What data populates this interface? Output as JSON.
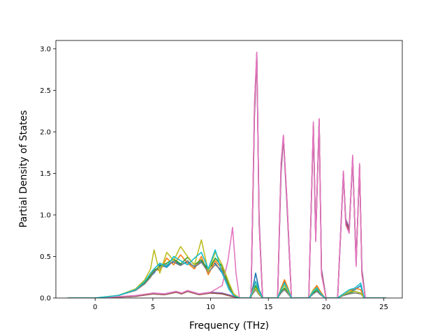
{
  "chart_data": {
    "type": "line",
    "title": "",
    "xlabel": "Frequency (THz)",
    "ylabel": "Partial Density of States",
    "xlim": [
      -3.4,
      26.6
    ],
    "ylim": [
      0.0,
      3.1
    ],
    "xticks": [
      0,
      5,
      10,
      15,
      20,
      25
    ],
    "xtick_labels": [
      "0",
      "5",
      "10",
      "15",
      "20",
      "25"
    ],
    "yticks": [
      0.0,
      0.5,
      1.0,
      1.5,
      2.0,
      2.5,
      3.0
    ],
    "ytick_labels": [
      "0.0",
      "0.5",
      "1.0",
      "1.5",
      "2.0",
      "2.5",
      "3.0"
    ],
    "grid": false,
    "legend": false,
    "colors": [
      "#1f77b4",
      "#ff7f0e",
      "#2ca02c",
      "#d62728",
      "#9467bd",
      "#8c564b",
      "#e377c2",
      "#7f7f7f",
      "#bcbd22",
      "#17becf"
    ],
    "series": [
      {
        "x": [
          -2.4,
          0,
          2,
          3.5,
          4.3,
          4.8,
          5.1,
          5.6,
          6.2,
          6.8,
          7.4,
          8.0,
          8.6,
          9.2,
          9.8,
          10.4,
          11.0,
          11.6,
          12.0,
          12.5,
          13.4,
          13.7,
          13.9,
          14.2,
          14.5,
          15.8,
          16.1,
          16.4,
          16.7,
          17.0,
          18.5,
          18.9,
          19.2,
          19.5,
          19.9,
          21.0,
          21.5,
          22.0,
          22.5,
          23.0,
          23.3,
          25.2
        ],
        "y": [
          0,
          0,
          0.03,
          0.1,
          0.18,
          0.26,
          0.3,
          0.4,
          0.37,
          0.45,
          0.4,
          0.43,
          0.38,
          0.44,
          0.36,
          0.42,
          0.3,
          0.12,
          0.03,
          0,
          0,
          0.15,
          0.3,
          0.1,
          0,
          0,
          0.1,
          0.2,
          0.1,
          0,
          0,
          0.08,
          0.15,
          0.05,
          0,
          0,
          0.05,
          0.08,
          0.1,
          0.15,
          0,
          0
        ]
      },
      {
        "x": [
          -2.4,
          0,
          2,
          3.5,
          4.3,
          4.8,
          5.1,
          5.6,
          6.2,
          6.8,
          7.4,
          8.0,
          8.6,
          9.2,
          9.8,
          10.4,
          11.0,
          11.6,
          12.0,
          12.5,
          13.4,
          13.7,
          13.9,
          14.2,
          14.5,
          15.8,
          16.1,
          16.4,
          16.7,
          17.0,
          18.5,
          18.9,
          19.2,
          19.5,
          19.9,
          21.0,
          21.5,
          22.0,
          22.5,
          23.0,
          23.3,
          25.2
        ],
        "y": [
          0,
          0,
          0.03,
          0.1,
          0.2,
          0.28,
          0.35,
          0.33,
          0.48,
          0.4,
          0.52,
          0.42,
          0.35,
          0.5,
          0.28,
          0.45,
          0.35,
          0.15,
          0.05,
          0,
          0,
          0.12,
          0.2,
          0.08,
          0,
          0,
          0.12,
          0.22,
          0.12,
          0,
          0,
          0.1,
          0.15,
          0.08,
          0,
          0,
          0.05,
          0.08,
          0.12,
          0.1,
          0,
          0
        ]
      },
      {
        "x": [
          -2.4,
          0,
          2,
          3.5,
          4.3,
          4.8,
          5.1,
          5.6,
          6.2,
          6.8,
          7.4,
          8.0,
          8.6,
          9.2,
          9.8,
          10.4,
          11.0,
          11.6,
          12.0,
          12.5,
          13.4,
          13.7,
          13.9,
          14.2,
          14.5,
          15.8,
          16.1,
          16.4,
          16.7,
          17.0,
          18.5,
          18.9,
          19.2,
          19.5,
          19.9,
          21.0,
          21.5,
          22.0,
          22.5,
          23.0,
          23.3,
          25.2
        ],
        "y": [
          0,
          0,
          0.03,
          0.1,
          0.19,
          0.27,
          0.33,
          0.38,
          0.42,
          0.47,
          0.41,
          0.49,
          0.4,
          0.46,
          0.33,
          0.48,
          0.38,
          0.14,
          0.04,
          0,
          0,
          0.08,
          0.15,
          0.06,
          0,
          0,
          0.08,
          0.12,
          0.06,
          0,
          0,
          0.06,
          0.1,
          0.05,
          0,
          0,
          0.03,
          0.06,
          0.08,
          0.06,
          0,
          0
        ]
      },
      {
        "x": [
          -2.4,
          0,
          3.5,
          5.0,
          6.0,
          7.0,
          7.5,
          8.0,
          9.0,
          10.0,
          11.0,
          11.8,
          12.5,
          13.5,
          13.8,
          14.0,
          14.2,
          14.5,
          15.8,
          16.1,
          16.3,
          16.6,
          17.0,
          18.5,
          18.9,
          19.1,
          19.4,
          19.6,
          20.0,
          21.0,
          21.5,
          21.7,
          22.0,
          22.3,
          22.6,
          22.9,
          23.1,
          23.4,
          25.2
        ],
        "y": [
          0,
          0,
          0.02,
          0.05,
          0.04,
          0.07,
          0.05,
          0.08,
          0.04,
          0.06,
          0.05,
          0.02,
          0,
          0,
          2.3,
          2.95,
          0.9,
          0,
          0,
          1.6,
          1.95,
          1.2,
          0,
          0,
          2.1,
          0.7,
          2.15,
          0.3,
          0,
          0,
          1.5,
          0.9,
          0.8,
          1.7,
          0.4,
          1.6,
          0.3,
          0,
          0
        ]
      },
      {
        "x": [
          -2.4,
          0,
          3.5,
          5.0,
          6.0,
          7.0,
          7.5,
          8.0,
          9.0,
          10.0,
          11.0,
          11.8,
          12.5,
          13.5,
          13.8,
          14.0,
          14.2,
          14.5,
          15.8,
          16.1,
          16.3,
          16.6,
          17.0,
          18.5,
          18.9,
          19.1,
          19.4,
          19.6,
          20.0,
          21.0,
          21.5,
          21.7,
          22.0,
          22.3,
          22.6,
          22.9,
          23.1,
          23.4,
          25.2
        ],
        "y": [
          0,
          0,
          0.02,
          0.06,
          0.05,
          0.08,
          0.06,
          0.09,
          0.05,
          0.07,
          0.06,
          0.03,
          0,
          0,
          2.2,
          2.93,
          0.95,
          0,
          0,
          1.5,
          1.93,
          1.15,
          0,
          0,
          2.05,
          0.75,
          2.12,
          0.35,
          0,
          0,
          1.48,
          0.95,
          0.85,
          1.65,
          0.45,
          1.55,
          0.35,
          0,
          0
        ]
      },
      {
        "x": [
          -2.4,
          0,
          3.5,
          5.0,
          6.0,
          7.0,
          7.5,
          8.0,
          9.0,
          10.0,
          11.0,
          11.8,
          12.5,
          13.5,
          13.8,
          14.0,
          14.2,
          14.5,
          15.8,
          16.1,
          16.3,
          16.6,
          17.0,
          18.5,
          18.9,
          19.1,
          19.4,
          19.6,
          20.0,
          21.0,
          21.5,
          21.7,
          22.0,
          22.3,
          22.6,
          22.9,
          23.1,
          23.4,
          25.2
        ],
        "y": [
          0,
          0,
          0.02,
          0.05,
          0.04,
          0.07,
          0.05,
          0.08,
          0.04,
          0.06,
          0.05,
          0.02,
          0,
          0,
          2.25,
          2.94,
          0.92,
          0,
          0,
          1.55,
          1.94,
          1.18,
          0,
          0,
          2.08,
          0.72,
          2.13,
          0.32,
          0,
          0,
          1.52,
          0.92,
          0.82,
          1.68,
          0.42,
          1.58,
          0.32,
          0,
          0
        ]
      },
      {
        "x": [
          -2.4,
          0,
          3.5,
          5.0,
          6.0,
          7.0,
          7.5,
          8.0,
          9.0,
          10.0,
          11.0,
          11.5,
          11.9,
          12.2,
          12.5,
          13.5,
          13.8,
          14.0,
          14.2,
          14.5,
          15.8,
          16.1,
          16.3,
          16.6,
          17.0,
          18.5,
          18.9,
          19.1,
          19.4,
          19.6,
          20.0,
          21.0,
          21.5,
          21.7,
          22.0,
          22.3,
          22.6,
          22.9,
          23.1,
          23.4,
          25.2
        ],
        "y": [
          0,
          0,
          0.03,
          0.06,
          0.05,
          0.08,
          0.06,
          0.09,
          0.05,
          0.07,
          0.15,
          0.45,
          0.85,
          0.3,
          0,
          0,
          2.35,
          2.96,
          0.88,
          0,
          0,
          1.62,
          1.96,
          1.22,
          0,
          0,
          2.12,
          0.68,
          2.16,
          0.28,
          0,
          0,
          1.53,
          0.88,
          0.78,
          1.72,
          0.38,
          1.62,
          0.28,
          0,
          0
        ]
      },
      {
        "x": [
          -2.4,
          0,
          2,
          3.5,
          4.3,
          4.8,
          5.1,
          5.6,
          6.2,
          6.8,
          7.4,
          8.0,
          8.6,
          9.2,
          9.8,
          10.4,
          11.0,
          11.6,
          12.0,
          12.5,
          13.4,
          13.7,
          13.9,
          14.2,
          14.5,
          15.8,
          16.1,
          16.4,
          16.7,
          17.0,
          18.5,
          18.9,
          19.2,
          19.5,
          19.9,
          21.0,
          21.5,
          22.0,
          22.5,
          23.0,
          23.3,
          25.2
        ],
        "y": [
          0,
          0,
          0.03,
          0.09,
          0.17,
          0.25,
          0.32,
          0.36,
          0.4,
          0.43,
          0.39,
          0.45,
          0.37,
          0.43,
          0.31,
          0.4,
          0.33,
          0.12,
          0.03,
          0,
          0,
          0.06,
          0.1,
          0.04,
          0,
          0,
          0.06,
          0.1,
          0.05,
          0,
          0,
          0.05,
          0.08,
          0.04,
          0,
          0,
          0.03,
          0.05,
          0.06,
          0.05,
          0,
          0
        ]
      },
      {
        "x": [
          -2.4,
          0,
          2,
          3.5,
          4.3,
          4.8,
          5.1,
          5.6,
          6.2,
          6.8,
          7.4,
          8.0,
          8.6,
          9.2,
          9.8,
          10.4,
          11.0,
          11.6,
          12.0,
          12.5,
          13.4,
          13.7,
          13.9,
          14.2,
          14.5,
          15.8,
          16.1,
          16.4,
          16.7,
          17.0,
          18.5,
          18.9,
          19.2,
          19.5,
          19.9,
          21.0,
          21.5,
          22.0,
          22.5,
          23.0,
          23.3,
          25.2
        ],
        "y": [
          0,
          0,
          0.03,
          0.11,
          0.22,
          0.35,
          0.58,
          0.3,
          0.55,
          0.45,
          0.62,
          0.5,
          0.4,
          0.7,
          0.32,
          0.55,
          0.4,
          0.18,
          0.05,
          0,
          0,
          0.08,
          0.12,
          0.05,
          0,
          0,
          0.1,
          0.15,
          0.08,
          0,
          0,
          0.1,
          0.12,
          0.06,
          0,
          0,
          0.04,
          0.08,
          0.08,
          0.06,
          0,
          0
        ]
      },
      {
        "x": [
          -2.4,
          0,
          2,
          3.5,
          4.3,
          4.8,
          5.1,
          5.6,
          6.2,
          6.8,
          7.4,
          8.0,
          8.6,
          9.2,
          9.8,
          10.4,
          11.0,
          11.6,
          12.0,
          12.5,
          13.4,
          13.7,
          13.9,
          14.2,
          14.5,
          15.8,
          16.1,
          16.4,
          16.7,
          17.0,
          18.5,
          18.9,
          19.2,
          19.5,
          19.9,
          21.0,
          21.5,
          22.0,
          22.5,
          23.0,
          23.3,
          25.2
        ],
        "y": [
          0,
          0,
          0.03,
          0.1,
          0.2,
          0.3,
          0.35,
          0.42,
          0.38,
          0.5,
          0.45,
          0.4,
          0.48,
          0.55,
          0.35,
          0.58,
          0.3,
          0.1,
          0.03,
          0,
          0,
          0.1,
          0.2,
          0.08,
          0,
          0,
          0.1,
          0.18,
          0.1,
          0,
          0,
          0.08,
          0.12,
          0.06,
          0,
          0,
          0.05,
          0.1,
          0.12,
          0.18,
          0,
          0
        ]
      }
    ]
  }
}
